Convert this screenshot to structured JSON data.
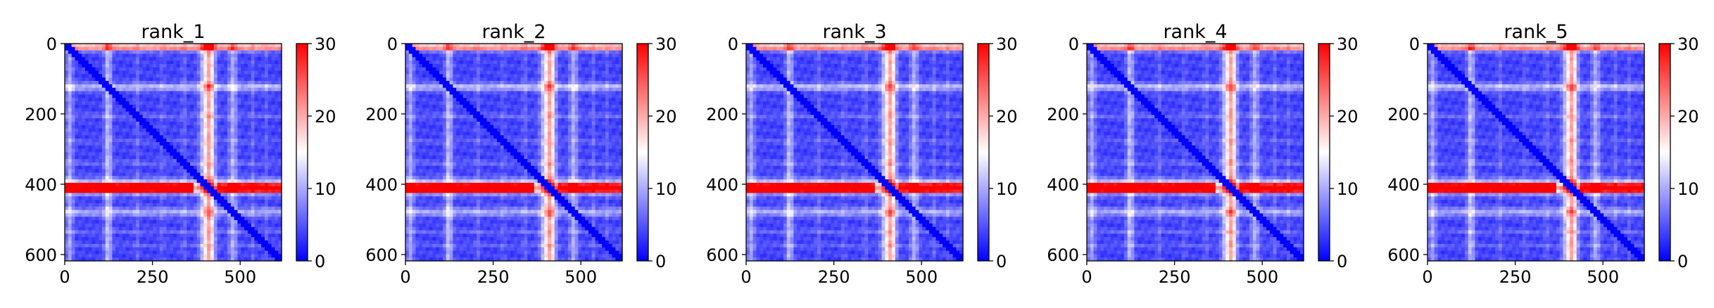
{
  "chart_data": [
    {
      "type": "heatmap",
      "title": "rank_1",
      "xticks": [
        0,
        250,
        500
      ],
      "yticks": [
        0,
        200,
        400,
        600
      ],
      "xlim": [
        0,
        618
      ],
      "ylim": [
        618,
        0
      ],
      "colorbar": {
        "ticks": [
          0,
          10,
          20,
          30
        ],
        "range": [
          0,
          30
        ],
        "colormap": "bwr"
      }
    },
    {
      "type": "heatmap",
      "title": "rank_2",
      "xticks": [
        0,
        250,
        500
      ],
      "yticks": [
        0,
        200,
        400,
        600
      ],
      "xlim": [
        0,
        618
      ],
      "ylim": [
        618,
        0
      ],
      "colorbar": {
        "ticks": [
          0,
          10,
          20,
          30
        ],
        "range": [
          0,
          30
        ],
        "colormap": "bwr"
      }
    },
    {
      "type": "heatmap",
      "title": "rank_3",
      "xticks": [
        0,
        250,
        500
      ],
      "yticks": [
        0,
        200,
        400,
        600
      ],
      "xlim": [
        0,
        618
      ],
      "ylim": [
        618,
        0
      ],
      "colorbar": {
        "ticks": [
          0,
          10,
          20,
          30
        ],
        "range": [
          0,
          30
        ],
        "colormap": "bwr"
      }
    },
    {
      "type": "heatmap",
      "title": "rank_4",
      "xticks": [
        0,
        250,
        500
      ],
      "yticks": [
        0,
        200,
        400,
        600
      ],
      "xlim": [
        0,
        618
      ],
      "ylim": [
        618,
        0
      ],
      "colorbar": {
        "ticks": [
          0,
          10,
          20,
          30
        ],
        "range": [
          0,
          30
        ],
        "colormap": "bwr"
      }
    },
    {
      "type": "heatmap",
      "title": "rank_5",
      "xticks": [
        0,
        250,
        500
      ],
      "yticks": [
        0,
        200,
        400,
        600
      ],
      "xlim": [
        0,
        618
      ],
      "ylim": [
        618,
        0
      ],
      "colorbar": {
        "ticks": [
          0,
          10,
          20,
          30
        ],
        "range": [
          0,
          30
        ],
        "colormap": "bwr"
      }
    }
  ],
  "colors": {
    "low": "#0000ff",
    "mid": "#ffffff",
    "high": "#ff0000"
  }
}
